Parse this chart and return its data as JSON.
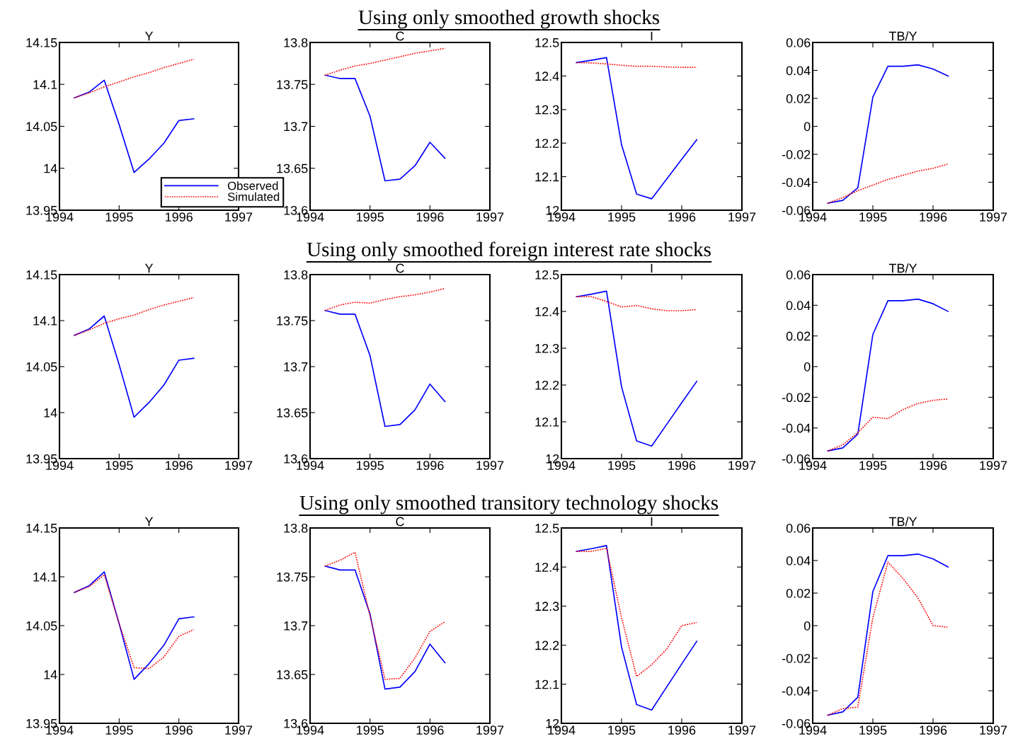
{
  "chart_data": [
    {
      "type": "line",
      "title": "Y",
      "x": [
        1994.25,
        1994.5,
        1994.75,
        1995,
        1995.25,
        1995.5,
        1995.75,
        1996,
        1996.25
      ],
      "xlim": [
        1994,
        1997
      ],
      "xticks": [
        1994,
        1995,
        1996,
        1997
      ],
      "ylim": [
        13.95,
        14.15
      ],
      "yticks": [
        13.95,
        14,
        14.05,
        14.1,
        14.15
      ],
      "legend": "bottom right",
      "series": [
        {
          "name": "Observed",
          "color": "#0000ff",
          "line_style": "solid",
          "values": [
            14.084,
            14.091,
            14.105,
            14.052,
            13.995,
            14.011,
            14.03,
            14.057,
            14.059
          ]
        },
        {
          "name": "Simulated",
          "color": "#ff0000",
          "line_style": "dotted",
          "values": [
            14.084,
            14.09,
            14.097,
            14.103,
            14.109,
            14.114,
            14.12,
            14.125,
            14.13
          ]
        }
      ]
    },
    {
      "type": "line",
      "subtitle": "Using only smoothed growth shocks",
      "title": "C",
      "x": [
        1994.25,
        1994.5,
        1994.75,
        1995,
        1995.25,
        1995.5,
        1995.75,
        1996,
        1996.25
      ],
      "xlim": [
        1994,
        1997
      ],
      "xticks": [
        1994,
        1995,
        1996,
        1997
      ],
      "ylim": [
        13.6,
        13.8
      ],
      "yticks": [
        13.6,
        13.65,
        13.7,
        13.75,
        13.8
      ],
      "series": [
        {
          "color": "#0000ff",
          "line_style": "solid",
          "values": [
            13.761,
            13.757,
            13.757,
            13.712,
            13.635,
            13.637,
            13.653,
            13.681,
            13.662
          ]
        },
        {
          "color": "#ff0000",
          "line_style": "dotted",
          "values": [
            13.761,
            13.767,
            13.772,
            13.775,
            13.779,
            13.783,
            13.787,
            13.79,
            13.793
          ]
        }
      ]
    },
    {
      "type": "line",
      "title": "I",
      "x": [
        1994.25,
        1994.5,
        1994.75,
        1995,
        1995.25,
        1995.5,
        1995.75,
        1996,
        1996.25
      ],
      "xlim": [
        1994,
        1997
      ],
      "xticks": [
        1994,
        1995,
        1996,
        1997
      ],
      "ylim": [
        12,
        12.5
      ],
      "yticks": [
        12,
        12.1,
        12.2,
        12.3,
        12.4,
        12.5
      ],
      "series": [
        {
          "color": "#0000ff",
          "line_style": "solid",
          "values": [
            12.44,
            12.447,
            12.455,
            12.195,
            12.048,
            12.034,
            12.093,
            12.152,
            12.21
          ]
        },
        {
          "color": "#ff0000",
          "line_style": "dotted",
          "values": [
            12.44,
            12.439,
            12.436,
            12.432,
            12.429,
            12.429,
            12.427,
            12.426,
            12.426
          ]
        }
      ]
    },
    {
      "type": "line",
      "title": "TB/Y",
      "x": [
        1994.25,
        1994.5,
        1994.75,
        1995,
        1995.25,
        1995.5,
        1995.75,
        1996,
        1996.25
      ],
      "xlim": [
        1994,
        1997
      ],
      "xticks": [
        1994,
        1995,
        1996,
        1997
      ],
      "ylim": [
        -0.06,
        0.06
      ],
      "yticks": [
        -0.06,
        -0.04,
        -0.02,
        0,
        0.02,
        0.04,
        0.06
      ],
      "series": [
        {
          "color": "#0000ff",
          "line_style": "solid",
          "values": [
            -0.055,
            -0.053,
            -0.044,
            0.021,
            0.043,
            0.043,
            0.044,
            0.041,
            0.036
          ]
        },
        {
          "color": "#ff0000",
          "line_style": "dotted",
          "values": [
            -0.055,
            -0.051,
            -0.046,
            -0.042,
            -0.038,
            -0.035,
            -0.032,
            -0.03,
            -0.027
          ]
        }
      ]
    },
    {
      "type": "line",
      "title": "Y",
      "x": [
        1994.25,
        1994.5,
        1994.75,
        1995,
        1995.25,
        1995.5,
        1995.75,
        1996,
        1996.25
      ],
      "xlim": [
        1994,
        1997
      ],
      "xticks": [
        1994,
        1995,
        1996,
        1997
      ],
      "ylim": [
        13.95,
        14.15
      ],
      "yticks": [
        13.95,
        14,
        14.05,
        14.1,
        14.15
      ],
      "series": [
        {
          "color": "#0000ff",
          "line_style": "solid",
          "values": [
            14.084,
            14.091,
            14.105,
            14.052,
            13.995,
            14.011,
            14.03,
            14.057,
            14.059
          ]
        },
        {
          "color": "#ff0000",
          "line_style": "dotted",
          "values": [
            14.084,
            14.09,
            14.097,
            14.102,
            14.106,
            14.112,
            14.117,
            14.121,
            14.125
          ]
        }
      ]
    },
    {
      "type": "line",
      "subtitle": "Using only smoothed foreign interest rate shocks",
      "title": "C",
      "x": [
        1994.25,
        1994.5,
        1994.75,
        1995,
        1995.25,
        1995.5,
        1995.75,
        1996,
        1996.25
      ],
      "xlim": [
        1994,
        1997
      ],
      "xticks": [
        1994,
        1995,
        1996,
        1997
      ],
      "ylim": [
        13.6,
        13.8
      ],
      "yticks": [
        13.6,
        13.65,
        13.7,
        13.75,
        13.8
      ],
      "series": [
        {
          "color": "#0000ff",
          "line_style": "solid",
          "values": [
            13.761,
            13.757,
            13.757,
            13.712,
            13.635,
            13.637,
            13.653,
            13.681,
            13.662
          ]
        },
        {
          "color": "#ff0000",
          "line_style": "dotted",
          "values": [
            13.761,
            13.767,
            13.77,
            13.769,
            13.773,
            13.776,
            13.778,
            13.781,
            13.785
          ]
        }
      ]
    },
    {
      "type": "line",
      "title": "I",
      "x": [
        1994.25,
        1994.5,
        1994.75,
        1995,
        1995.25,
        1995.5,
        1995.75,
        1996,
        1996.25
      ],
      "xlim": [
        1994,
        1997
      ],
      "xticks": [
        1994,
        1995,
        1996,
        1997
      ],
      "ylim": [
        12,
        12.5
      ],
      "yticks": [
        12,
        12.1,
        12.2,
        12.3,
        12.4,
        12.5
      ],
      "series": [
        {
          "color": "#0000ff",
          "line_style": "solid",
          "values": [
            12.44,
            12.447,
            12.455,
            12.195,
            12.048,
            12.034,
            12.093,
            12.152,
            12.21
          ]
        },
        {
          "color": "#ff0000",
          "line_style": "dotted",
          "values": [
            12.44,
            12.44,
            12.427,
            12.412,
            12.416,
            12.407,
            12.402,
            12.402,
            12.405
          ]
        }
      ]
    },
    {
      "type": "line",
      "title": "TB/Y",
      "x": [
        1994.25,
        1994.5,
        1994.75,
        1995,
        1995.25,
        1995.5,
        1995.75,
        1996,
        1996.25
      ],
      "xlim": [
        1994,
        1997
      ],
      "xticks": [
        1994,
        1995,
        1996,
        1997
      ],
      "ylim": [
        -0.06,
        0.06
      ],
      "yticks": [
        -0.06,
        -0.04,
        -0.02,
        0,
        0.02,
        0.04,
        0.06
      ],
      "series": [
        {
          "color": "#0000ff",
          "line_style": "solid",
          "values": [
            -0.055,
            -0.053,
            -0.044,
            0.021,
            0.043,
            0.043,
            0.044,
            0.041,
            0.036
          ]
        },
        {
          "color": "#ff0000",
          "line_style": "dotted",
          "values": [
            -0.055,
            -0.051,
            -0.043,
            -0.033,
            -0.034,
            -0.028,
            -0.024,
            -0.022,
            -0.021
          ]
        }
      ]
    },
    {
      "type": "line",
      "title": "Y",
      "x": [
        1994.25,
        1994.5,
        1994.75,
        1995,
        1995.25,
        1995.5,
        1995.75,
        1996,
        1996.25
      ],
      "xlim": [
        1994,
        1997
      ],
      "xticks": [
        1994,
        1995,
        1996,
        1997
      ],
      "ylim": [
        13.95,
        14.15
      ],
      "yticks": [
        13.95,
        14,
        14.05,
        14.1,
        14.15
      ],
      "series": [
        {
          "color": "#0000ff",
          "line_style": "solid",
          "values": [
            14.084,
            14.091,
            14.105,
            14.052,
            13.995,
            14.011,
            14.03,
            14.057,
            14.059
          ]
        },
        {
          "color": "#ff0000",
          "line_style": "dotted",
          "values": [
            14.084,
            14.09,
            14.102,
            14.052,
            14.007,
            14.006,
            14.018,
            14.039,
            14.046
          ]
        }
      ]
    },
    {
      "type": "line",
      "subtitle": "Using only smoothed transitory technology shocks",
      "title": "C",
      "x": [
        1994.25,
        1994.5,
        1994.75,
        1995,
        1995.25,
        1995.5,
        1995.75,
        1996,
        1996.25
      ],
      "xlim": [
        1994,
        1997
      ],
      "xticks": [
        1994,
        1995,
        1996,
        1997
      ],
      "ylim": [
        13.6,
        13.8
      ],
      "yticks": [
        13.6,
        13.65,
        13.7,
        13.75,
        13.8
      ],
      "series": [
        {
          "color": "#0000ff",
          "line_style": "solid",
          "values": [
            13.761,
            13.757,
            13.757,
            13.712,
            13.635,
            13.637,
            13.653,
            13.681,
            13.662
          ]
        },
        {
          "color": "#ff0000",
          "line_style": "dotted",
          "values": [
            13.761,
            13.767,
            13.775,
            13.71,
            13.645,
            13.646,
            13.667,
            13.694,
            13.704
          ]
        }
      ]
    },
    {
      "type": "line",
      "title": "I",
      "x": [
        1994.25,
        1994.5,
        1994.75,
        1995,
        1995.25,
        1995.5,
        1995.75,
        1996,
        1996.25
      ],
      "xlim": [
        1994,
        1997
      ],
      "xticks": [
        1994,
        1995,
        1996,
        1997
      ],
      "ylim": [
        12,
        12.5
      ],
      "yticks": [
        12,
        12.1,
        12.2,
        12.3,
        12.4,
        12.5
      ],
      "series": [
        {
          "color": "#0000ff",
          "line_style": "solid",
          "values": [
            12.44,
            12.447,
            12.455,
            12.195,
            12.048,
            12.034,
            12.093,
            12.152,
            12.21
          ]
        },
        {
          "color": "#ff0000",
          "line_style": "dotted",
          "values": [
            12.44,
            12.44,
            12.448,
            12.27,
            12.12,
            12.15,
            12.19,
            12.25,
            12.258
          ]
        }
      ]
    },
    {
      "type": "line",
      "title": "TB/Y",
      "x": [
        1994.25,
        1994.5,
        1994.75,
        1995,
        1995.25,
        1995.5,
        1995.75,
        1996,
        1996.25
      ],
      "xlim": [
        1994,
        1997
      ],
      "xticks": [
        1994,
        1995,
        1996,
        1997
      ],
      "ylim": [
        -0.06,
        0.06
      ],
      "yticks": [
        -0.06,
        -0.04,
        -0.02,
        0,
        0.02,
        0.04,
        0.06
      ],
      "series": [
        {
          "color": "#0000ff",
          "line_style": "solid",
          "values": [
            -0.055,
            -0.053,
            -0.044,
            0.021,
            0.043,
            0.043,
            0.044,
            0.041,
            0.036
          ]
        },
        {
          "color": "#ff0000",
          "line_style": "dotted",
          "values": [
            -0.055,
            -0.051,
            -0.05,
            0.005,
            0.039,
            0.029,
            0.017,
            0,
            -0.001
          ]
        }
      ]
    }
  ]
}
